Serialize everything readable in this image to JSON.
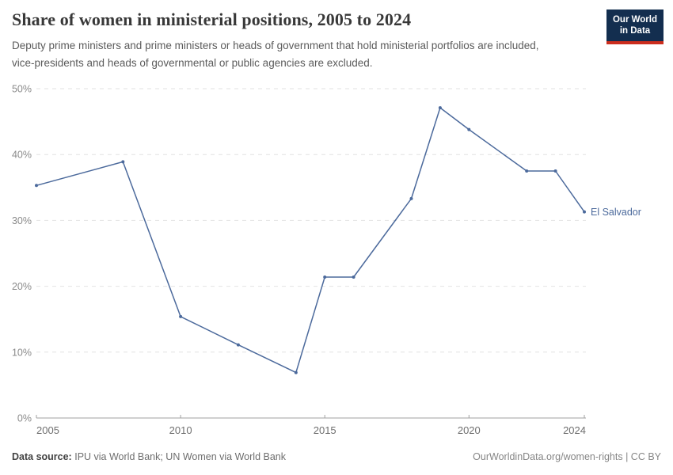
{
  "header": {
    "title": "Share of women in ministerial positions, 2005 to 2024",
    "subtitle": "Deputy prime ministers and prime ministers or heads of government that hold ministerial portfolios are included, vice-presidents and heads of governmental or public agencies are excluded."
  },
  "logo": {
    "line1": "Our World",
    "line2": "in Data",
    "bg_color": "#132e4f",
    "accent_color": "#cb2d1d"
  },
  "chart_data": {
    "type": "line",
    "title": "Share of women in ministerial positions, 2005 to 2024",
    "xlabel": "",
    "ylabel": "",
    "xlim": [
      2005,
      2024
    ],
    "ylim": [
      0,
      50
    ],
    "x_ticks": [
      2005,
      2010,
      2015,
      2020,
      2024
    ],
    "y_ticks": [
      0,
      10,
      20,
      30,
      40,
      50
    ],
    "y_tick_suffix": "%",
    "grid": "dashed-horizontal",
    "legend_position": "end-of-line-label",
    "series": [
      {
        "name": "El Salvador",
        "color": "#4c6a9c",
        "points": [
          {
            "x": 2005,
            "y": 35.3
          },
          {
            "x": 2008,
            "y": 38.9
          },
          {
            "x": 2010,
            "y": 15.4
          },
          {
            "x": 2012,
            "y": 11.1
          },
          {
            "x": 2014,
            "y": 6.9
          },
          {
            "x": 2015,
            "y": 21.4
          },
          {
            "x": 2016,
            "y": 21.4
          },
          {
            "x": 2018,
            "y": 33.3
          },
          {
            "x": 2019,
            "y": 47.1
          },
          {
            "x": 2020,
            "y": 43.8
          },
          {
            "x": 2022,
            "y": 37.5
          },
          {
            "x": 2023,
            "y": 37.5
          },
          {
            "x": 2024,
            "y": 31.3
          }
        ]
      }
    ],
    "colors": {
      "line": "#4c6a9c",
      "grid": "#e2e2e2",
      "axis": "#a0a0a0",
      "x_tick_label": "#6f6f6f",
      "y_tick_label": "#8a8a8a"
    }
  },
  "footer": {
    "source_label": "Data source:",
    "source_text": "IPU via World Bank; UN Women via World Bank",
    "attribution": "OurWorldinData.org/women-rights | CC BY"
  }
}
